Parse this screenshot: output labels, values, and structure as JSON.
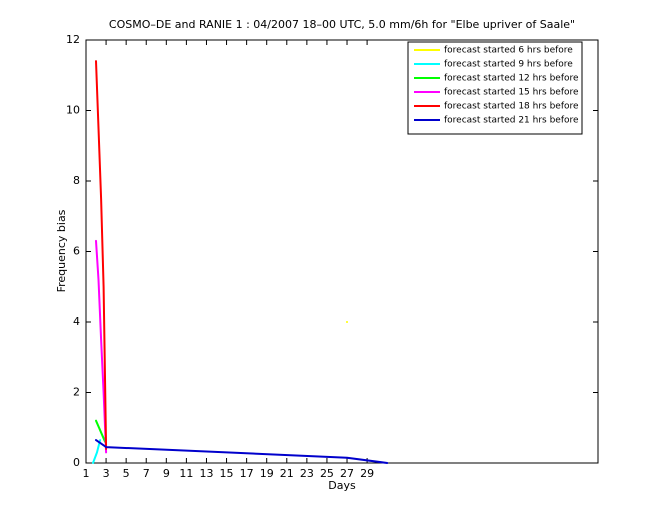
{
  "chart_data": {
    "type": "line",
    "title": "COSMO–DE and RANIE 1 : 04/2007 18–00 UTC, 5.0 mm/6h for \"Elbe upriver of Saale\"",
    "xlabel": "Days",
    "ylabel": "Frequency bias",
    "xlim": [
      1,
      52
    ],
    "ylim": [
      0,
      12
    ],
    "xticks": [
      1,
      3,
      5,
      7,
      9,
      11,
      13,
      15,
      17,
      19,
      21,
      23,
      25,
      27,
      29
    ],
    "yticks": [
      0,
      2,
      4,
      6,
      8,
      10,
      12
    ],
    "legend": "northeast",
    "series": [
      {
        "name": "forecast started 6 hrs before",
        "color": "#ffff00",
        "x": [
          27
        ],
        "values": [
          4
        ]
      },
      {
        "name": "forecast started 9 hrs before",
        "color": "#00ffff",
        "x": [
          1.7,
          2.1,
          2.4
        ],
        "values": [
          0,
          0.3,
          0.65
        ]
      },
      {
        "name": "forecast started 12 hrs before",
        "color": "#00ff00",
        "x": [
          2,
          2.3,
          2.6,
          2.9
        ],
        "values": [
          1.2,
          1.0,
          0.8,
          0.6
        ]
      },
      {
        "name": "forecast started 15 hrs before",
        "color": "#ff00ff",
        "x": [
          2,
          2.25,
          2.5,
          2.75,
          3
        ],
        "values": [
          6.3,
          5.2,
          3.5,
          2.0,
          0.3
        ]
      },
      {
        "name": "forecast started 18 hrs before",
        "color": "#ff0000",
        "x": [
          2,
          2.25,
          2.5,
          2.75,
          3
        ],
        "values": [
          11.4,
          9.5,
          7.5,
          5.0,
          0.4
        ]
      },
      {
        "name": "forecast started 21 hrs before",
        "color": "#0000cc",
        "x": [
          2,
          2.5,
          3,
          27,
          31
        ],
        "values": [
          0.65,
          0.55,
          0.45,
          0.15,
          0
        ]
      }
    ]
  }
}
